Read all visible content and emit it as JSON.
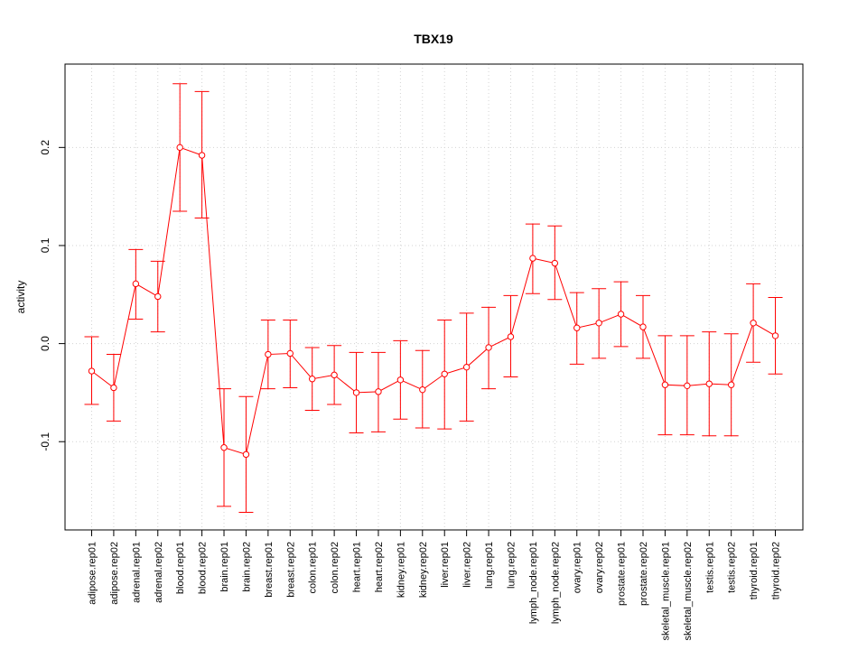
{
  "chart_data": {
    "type": "line",
    "title": "TBX19",
    "xlabel": "",
    "ylabel": "activity",
    "ylim": [
      -0.19,
      0.285
    ],
    "yticks": [
      -0.1,
      0.0,
      0.1,
      0.2
    ],
    "ytick_labels": [
      "-0.1",
      "0.0",
      "0.1",
      "0.2"
    ],
    "grid": true,
    "color": "#ff0000",
    "categories": [
      "adipose.rep01",
      "adipose.rep02",
      "adrenal.rep01",
      "adrenal.rep02",
      "blood.rep01",
      "blood.rep02",
      "brain.rep01",
      "brain.rep02",
      "breast.rep01",
      "breast.rep02",
      "colon.rep01",
      "colon.rep02",
      "heart.rep01",
      "heart.rep02",
      "kidney.rep01",
      "kidney.rep02",
      "liver.rep01",
      "liver.rep02",
      "lung.rep01",
      "lung.rep02",
      "lymph_node.rep01",
      "lymph_node.rep02",
      "ovary.rep01",
      "ovary.rep02",
      "prostate.rep01",
      "prostate.rep02",
      "skeletal_muscle.rep01",
      "skeletal_muscle.rep02",
      "testis.rep01",
      "testis.rep02",
      "thyroid.rep01",
      "thyroid.rep02"
    ],
    "values": [
      -0.028,
      -0.045,
      0.061,
      0.048,
      0.2,
      0.192,
      -0.106,
      -0.113,
      -0.011,
      -0.01,
      -0.036,
      -0.032,
      -0.05,
      -0.049,
      -0.037,
      -0.047,
      -0.031,
      -0.024,
      -0.004,
      0.007,
      0.087,
      0.082,
      0.016,
      0.021,
      0.03,
      0.017,
      -0.042,
      -0.043,
      -0.041,
      -0.042,
      0.021,
      0.008
    ],
    "upper": [
      0.007,
      -0.011,
      0.096,
      0.084,
      0.265,
      0.257,
      -0.046,
      -0.054,
      0.024,
      0.024,
      -0.004,
      -0.002,
      -0.009,
      -0.009,
      0.003,
      -0.007,
      0.024,
      0.031,
      0.037,
      0.049,
      0.122,
      0.12,
      0.052,
      0.056,
      0.063,
      0.049,
      0.008,
      0.008,
      0.012,
      0.01,
      0.061,
      0.047
    ],
    "lower": [
      -0.062,
      -0.079,
      0.025,
      0.012,
      0.135,
      0.128,
      -0.166,
      -0.172,
      -0.046,
      -0.045,
      -0.068,
      -0.062,
      -0.091,
      -0.09,
      -0.077,
      -0.086,
      -0.087,
      -0.079,
      -0.046,
      -0.034,
      0.051,
      0.045,
      -0.021,
      -0.015,
      -0.003,
      -0.015,
      -0.093,
      -0.093,
      -0.094,
      -0.094,
      -0.019,
      -0.031
    ]
  }
}
